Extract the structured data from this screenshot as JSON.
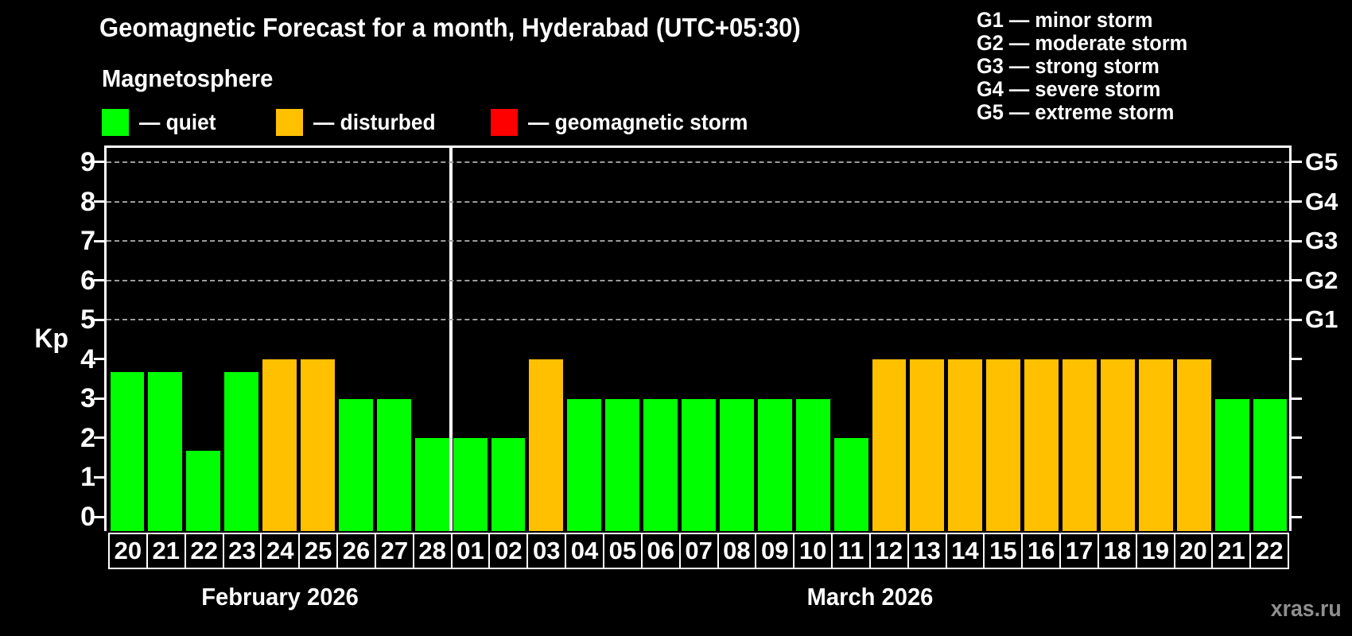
{
  "header": {
    "title": "Geomagnetic Forecast for a month, Hyderabad (UTC+05:30)",
    "subtitle": "Magnetosphere",
    "status_legend": [
      {
        "name": "quiet",
        "label": "— quiet",
        "color": "#00ff00"
      },
      {
        "name": "disturbed",
        "label": "— disturbed",
        "color": "#ffc000"
      },
      {
        "name": "storm",
        "label": "— geomagnetic storm",
        "color": "#ff0000"
      }
    ],
    "gscale_legend": [
      {
        "label": "G1 — minor storm"
      },
      {
        "label": "G2 — moderate storm"
      },
      {
        "label": "G3 — strong storm"
      },
      {
        "label": "G4 — severe storm"
      },
      {
        "label": "G5 — extreme storm"
      }
    ]
  },
  "chart_data": {
    "type": "bar",
    "title": "Geomagnetic Forecast for a month, Hyderabad (UTC+05:30)",
    "ylabel": "Kp",
    "ylim": [
      0,
      9
    ],
    "yticks": [
      0,
      1,
      2,
      3,
      4,
      5,
      6,
      7,
      8,
      9
    ],
    "grid": "dashed horizontal lines at Kp 5-9 only",
    "legend_position": "top",
    "g_levels": [
      {
        "code": "G1",
        "kp": 5
      },
      {
        "code": "G2",
        "kp": 6
      },
      {
        "code": "G3",
        "kp": 7
      },
      {
        "code": "G4",
        "kp": 8
      },
      {
        "code": "G5",
        "kp": 9
      }
    ],
    "status_colors": {
      "quiet": "#00ff00",
      "disturbed": "#ffc000",
      "storm": "#ff0000"
    },
    "months": [
      {
        "label": "February 2026",
        "bars": [
          {
            "day": "20",
            "kp": 3.67,
            "status": "quiet"
          },
          {
            "day": "21",
            "kp": 3.67,
            "status": "quiet"
          },
          {
            "day": "22",
            "kp": 1.67,
            "status": "quiet"
          },
          {
            "day": "23",
            "kp": 3.67,
            "status": "quiet"
          },
          {
            "day": "24",
            "kp": 4,
            "status": "disturbed"
          },
          {
            "day": "25",
            "kp": 4,
            "status": "disturbed"
          },
          {
            "day": "26",
            "kp": 3,
            "status": "quiet"
          },
          {
            "day": "27",
            "kp": 3,
            "status": "quiet"
          },
          {
            "day": "28",
            "kp": 2,
            "status": "quiet"
          }
        ]
      },
      {
        "label": "March 2026",
        "bars": [
          {
            "day": "01",
            "kp": 2,
            "status": "quiet"
          },
          {
            "day": "02",
            "kp": 2,
            "status": "quiet"
          },
          {
            "day": "03",
            "kp": 4,
            "status": "disturbed"
          },
          {
            "day": "04",
            "kp": 3,
            "status": "quiet"
          },
          {
            "day": "05",
            "kp": 3,
            "status": "quiet"
          },
          {
            "day": "06",
            "kp": 3,
            "status": "quiet"
          },
          {
            "day": "07",
            "kp": 3,
            "status": "quiet"
          },
          {
            "day": "08",
            "kp": 3,
            "status": "quiet"
          },
          {
            "day": "09",
            "kp": 3,
            "status": "quiet"
          },
          {
            "day": "10",
            "kp": 3,
            "status": "quiet"
          },
          {
            "day": "11",
            "kp": 2,
            "status": "quiet"
          },
          {
            "day": "12",
            "kp": 4,
            "status": "disturbed"
          },
          {
            "day": "13",
            "kp": 4,
            "status": "disturbed"
          },
          {
            "day": "14",
            "kp": 4,
            "status": "disturbed"
          },
          {
            "day": "15",
            "kp": 4,
            "status": "disturbed"
          },
          {
            "day": "16",
            "kp": 4,
            "status": "disturbed"
          },
          {
            "day": "17",
            "kp": 4,
            "status": "disturbed"
          },
          {
            "day": "18",
            "kp": 4,
            "status": "disturbed"
          },
          {
            "day": "19",
            "kp": 4,
            "status": "disturbed"
          },
          {
            "day": "20",
            "kp": 4,
            "status": "disturbed"
          },
          {
            "day": "21",
            "kp": 3,
            "status": "quiet"
          },
          {
            "day": "22",
            "kp": 3,
            "status": "quiet"
          }
        ]
      }
    ]
  },
  "watermark": "xras.ru"
}
